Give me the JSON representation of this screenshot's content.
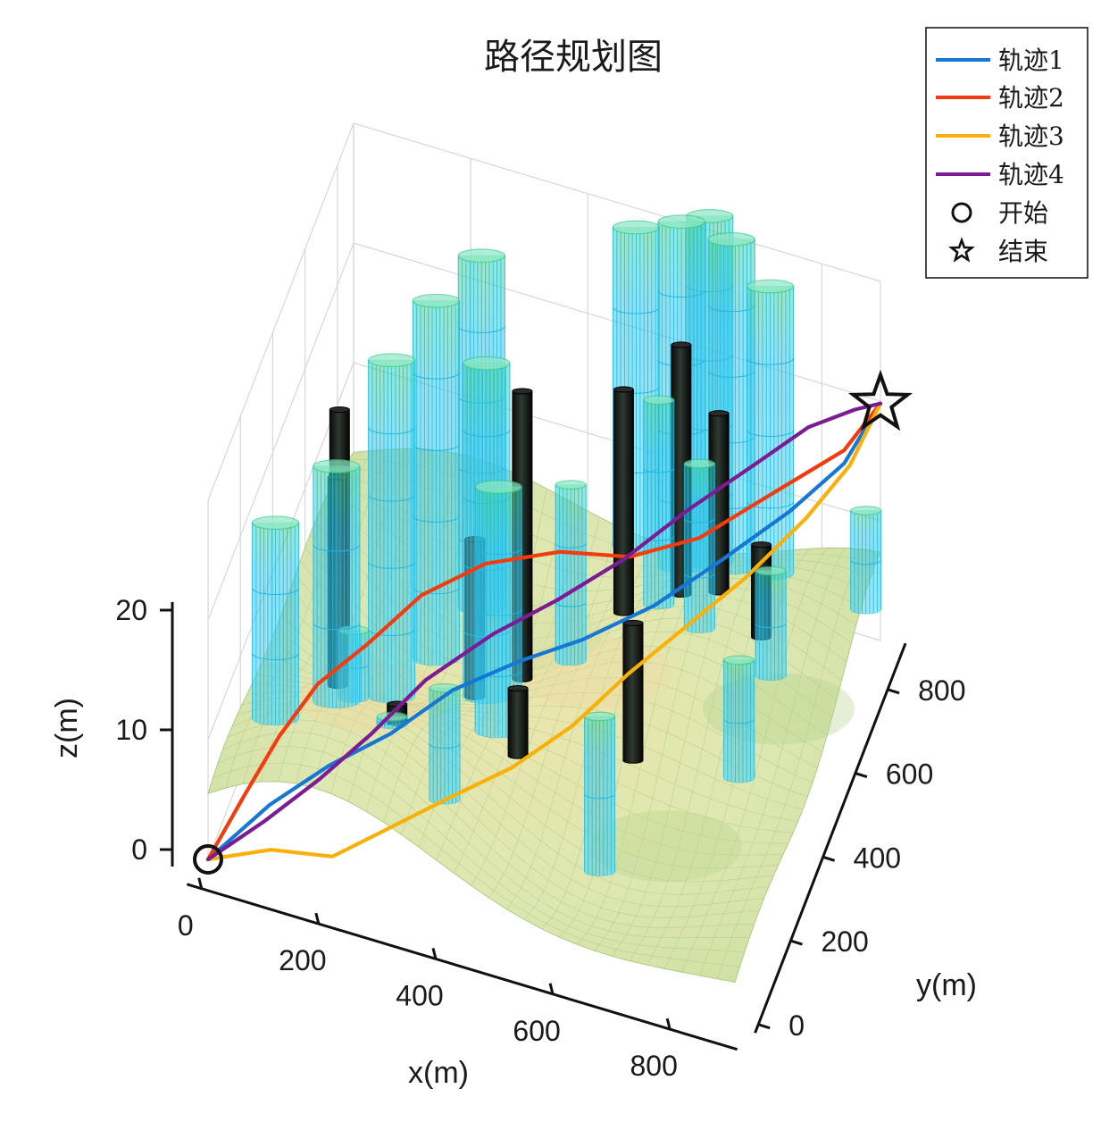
{
  "chart_data": {
    "type": "line",
    "title": "路径规划图",
    "xlabel": "x(m)",
    "ylabel": "y(m)",
    "zlabel": "z(m)",
    "x_ticks": [
      "0",
      "200",
      "400",
      "600",
      "800"
    ],
    "y_ticks": [
      "0",
      "200",
      "400",
      "600",
      "800"
    ],
    "z_ticks": [
      "0",
      "10",
      "20"
    ],
    "xlim": [
      0,
      900
    ],
    "ylim": [
      0,
      900
    ],
    "zlim": [
      0,
      30
    ],
    "grid": true,
    "legend_position": "top-right",
    "colors": {
      "series1": "#1677d4",
      "series2": "#f23c10",
      "series3": "#f9b10a",
      "series4": "#7b1c94",
      "terrain": "#d9e4a8",
      "obstacle_cyan": "#3fd0ea",
      "obstacle_black": "#141414"
    },
    "series": [
      {
        "name": "轨迹1",
        "color": "#1677d4",
        "points": [
          [
            0,
            0,
            0
          ],
          [
            85,
            75,
            3.2
          ],
          [
            165,
            150,
            5.0
          ],
          [
            250,
            225,
            6.3
          ],
          [
            330,
            320,
            7.8
          ],
          [
            420,
            400,
            8.7
          ],
          [
            510,
            470,
            9.4
          ],
          [
            610,
            550,
            10.9
          ],
          [
            700,
            650,
            12.6
          ],
          [
            790,
            740,
            14.8
          ],
          [
            860,
            820,
            17.0
          ],
          [
            900,
            900,
            19.8
          ]
        ]
      },
      {
        "name": "轨迹2",
        "color": "#f23c10",
        "points": [
          [
            0,
            0,
            0
          ],
          [
            40,
            75,
            3.2
          ],
          [
            80,
            150,
            6.2
          ],
          [
            125,
            225,
            8.6
          ],
          [
            190,
            300,
            10.3
          ],
          [
            260,
            380,
            12.6
          ],
          [
            350,
            450,
            14.1
          ],
          [
            460,
            510,
            14.6
          ],
          [
            560,
            580,
            13.2
          ],
          [
            660,
            650,
            13.8
          ],
          [
            760,
            730,
            16.1
          ],
          [
            860,
            820,
            18.1
          ],
          [
            900,
            900,
            19.8
          ]
        ]
      },
      {
        "name": "轨迹3",
        "color": "#f9b10a",
        "points": [
          [
            0,
            0,
            0
          ],
          [
            100,
            25,
            1.4
          ],
          [
            200,
            45,
            1.6
          ],
          [
            280,
            85,
            3.6
          ],
          [
            370,
            140,
            5.6
          ],
          [
            460,
            215,
            6.9
          ],
          [
            540,
            300,
            8.6
          ],
          [
            610,
            390,
            10.8
          ],
          [
            680,
            500,
            12.0
          ],
          [
            750,
            610,
            13.2
          ],
          [
            820,
            730,
            15.0
          ],
          [
            870,
            820,
            17.0
          ],
          [
            900,
            900,
            19.8
          ]
        ]
      },
      {
        "name": "轨迹4",
        "color": "#7b1c94",
        "points": [
          [
            0,
            0,
            0
          ],
          [
            80,
            55,
            2.4
          ],
          [
            160,
            110,
            5.2
          ],
          [
            230,
            180,
            7.6
          ],
          [
            300,
            260,
            10.3
          ],
          [
            390,
            350,
            12.3
          ],
          [
            480,
            420,
            14.0
          ],
          [
            570,
            510,
            15.6
          ],
          [
            650,
            600,
            17.6
          ],
          [
            740,
            690,
            19.6
          ],
          [
            810,
            780,
            20.7
          ],
          [
            870,
            850,
            20.6
          ],
          [
            900,
            900,
            19.8
          ]
        ]
      }
    ],
    "markers": [
      {
        "name": "开始",
        "symbol": "circle",
        "x": 0,
        "y": 0,
        "z": 0
      },
      {
        "name": "结束",
        "symbol": "star",
        "x": 900,
        "y": 900,
        "z": 19.8
      }
    ],
    "cylinders_cyan": [
      [
        60,
        200,
        22
      ],
      [
        120,
        360,
        22
      ],
      [
        170,
        520,
        26
      ],
      [
        210,
        650,
        27
      ],
      [
        260,
        750,
        28
      ],
      [
        310,
        600,
        25
      ],
      [
        480,
        910,
        28
      ],
      [
        560,
        900,
        30
      ],
      [
        600,
        930,
        30
      ],
      [
        640,
        920,
        29
      ],
      [
        720,
        870,
        28
      ],
      [
        560,
        760,
        20
      ],
      [
        380,
        420,
        22
      ],
      [
        440,
        650,
        15
      ],
      [
        660,
        650,
        20
      ],
      [
        360,
        160,
        14
      ],
      [
        600,
        250,
        12
      ],
      [
        780,
        460,
        12
      ],
      [
        790,
        620,
        14
      ],
      [
        900,
        810,
        14
      ],
      [
        130,
        430,
        6
      ],
      [
        240,
        270,
        6
      ]
    ],
    "cylinders_black": [
      [
        100,
        440,
        18
      ],
      [
        70,
        560,
        19
      ],
      [
        360,
        640,
        22
      ],
      [
        500,
        760,
        20
      ],
      [
        590,
        790,
        24
      ],
      [
        660,
        770,
        20
      ],
      [
        240,
        300,
        6
      ],
      [
        430,
        360,
        8
      ],
      [
        610,
        420,
        14
      ],
      [
        760,
        670,
        14
      ],
      [
        290,
        600,
        10
      ]
    ]
  },
  "legend": {
    "entries": [
      "轨迹1",
      "轨迹2",
      "轨迹3",
      "轨迹4",
      "开始",
      "结束"
    ]
  }
}
